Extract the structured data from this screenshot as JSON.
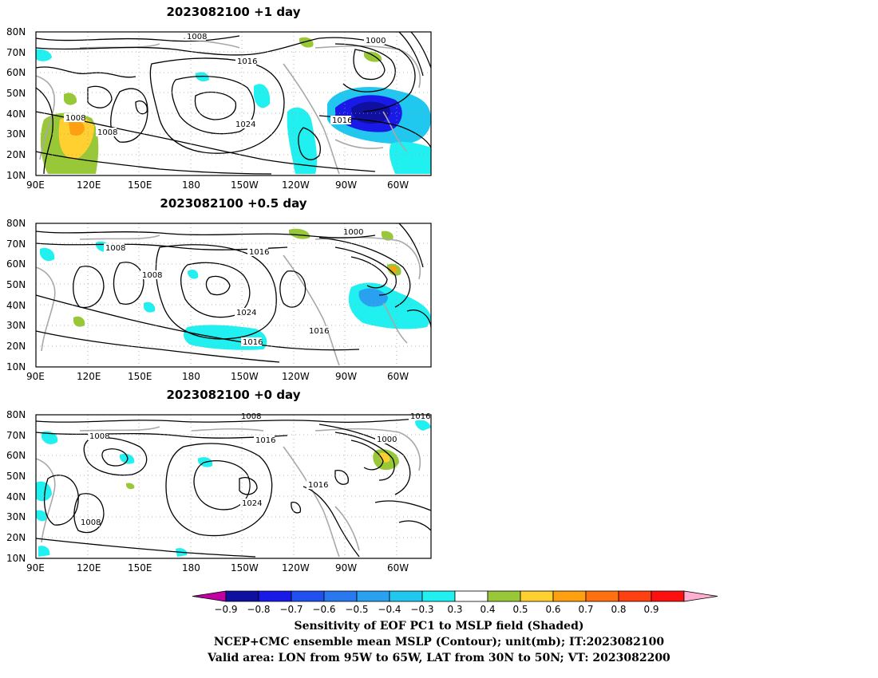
{
  "panels": [
    {
      "title": "2023082100  +1 day"
    },
    {
      "title": "2023082100  +0.5 day"
    },
    {
      "title": "2023082100  +0 day"
    }
  ],
  "lat_labels": [
    "80N",
    "70N",
    "60N",
    "50N",
    "40N",
    "30N",
    "20N",
    "10N"
  ],
  "lon_labels": [
    "90E",
    "120E",
    "150E",
    "180",
    "150W",
    "120W",
    "90W",
    "60W"
  ],
  "contour_labels": {
    "p0": [
      "1008",
      "1000",
      "1016",
      "1016",
      "1024",
      "1008",
      "1008"
    ],
    "p1": [
      "1000",
      "1008",
      "1016",
      "1008",
      "1024",
      "1016",
      "1016"
    ],
    "p2": [
      "1008",
      "1016",
      "1008",
      "1016",
      "1000",
      "1024",
      "1016",
      "1008"
    ]
  },
  "colorbar": {
    "ticks": [
      "−0.9",
      "−0.8",
      "−0.7",
      "−0.6",
      "−0.5",
      "−0.4",
      "−0.3",
      "0.3",
      "0.4",
      "0.5",
      "0.6",
      "0.7",
      "0.8",
      "0.9"
    ],
    "colors": [
      "#1010a0",
      "#1a1ae8",
      "#2050f0",
      "#2878f0",
      "#2aa0f0",
      "#20c8f0",
      "#20f0f0",
      "#ffffff",
      "#98c838",
      "#ffd030",
      "#ffa010",
      "#ff7010",
      "#ff4010",
      "#ff1010"
    ],
    "left_arrow_color": "#c000a0",
    "right_arrow_color": "#ffb0d0"
  },
  "captions": [
    "Sensitivity of EOF PC1 to MSLP field (Shaded)",
    "NCEP+CMC ensemble mean MSLP (Contour); unit(mb); IT:2023082100",
    "Valid area: LON from 95W to 65W, LAT from 30N to 50N; VT: 2023082200"
  ]
}
